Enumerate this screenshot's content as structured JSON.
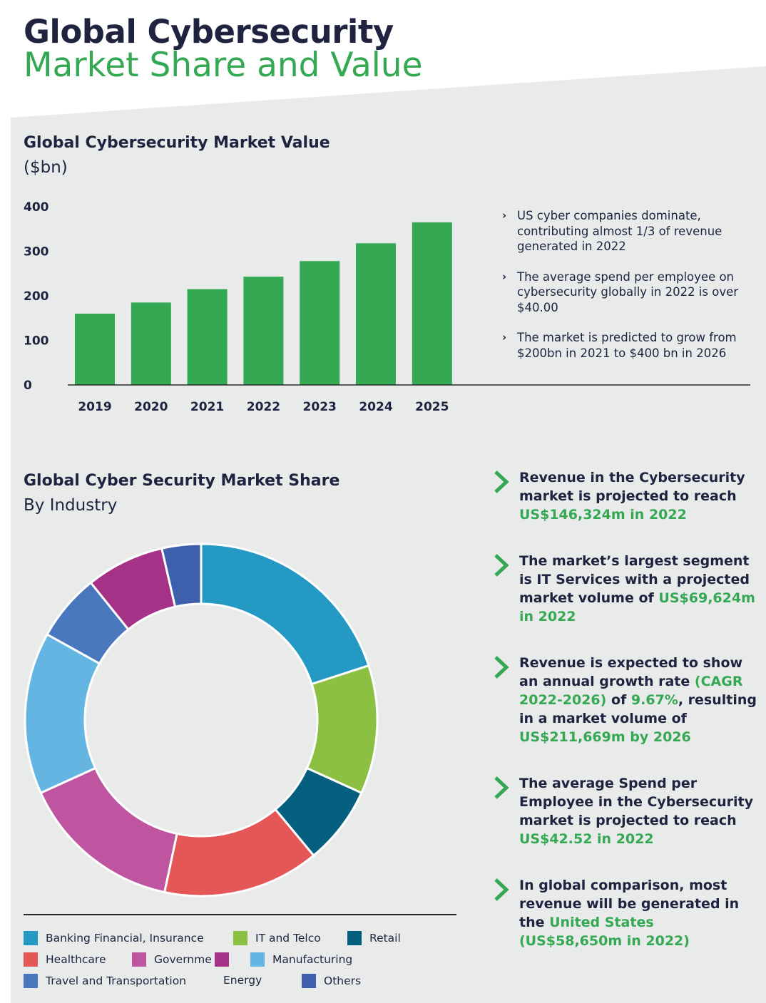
{
  "header": {
    "title_line1": "Global Cybersecurity",
    "title_line2": "Market Share and Value"
  },
  "colors": {
    "navy": "#1f2340",
    "green": "#34a853",
    "panel": "#e9eaea"
  },
  "chart_data": [
    {
      "type": "bar",
      "title": "Global Cybersecurity Market Value",
      "subtitle": "($bn)",
      "categories": [
        "2019",
        "2020",
        "2021",
        "2022",
        "2023",
        "2024",
        "2025"
      ],
      "values": [
        160,
        185,
        215,
        243,
        278,
        318,
        365
      ],
      "yticks": [
        0,
        100,
        200,
        300,
        400
      ],
      "ylim": [
        0,
        410
      ],
      "grid": false,
      "color": "#34a853"
    },
    {
      "type": "pie",
      "title": "Global Cyber Security Market Share",
      "subtitle": "By Industry",
      "labels": [
        "Banking Financial, Insurance",
        "IT and Telco",
        "Retail",
        "Healthcare",
        "Governme",
        "Manufacturing",
        "Travel and Transportation",
        "Energy",
        "Others"
      ],
      "values": [
        19.5,
        11.5,
        7,
        14,
        14.5,
        14.5,
        6,
        7,
        3.5
      ],
      "colors": [
        "#2399c4",
        "#8bc043",
        "#05607f",
        "#e55656",
        "#bf55a0",
        "#65b5e2",
        "#4a78bf",
        "#a63288",
        "#3e5fac"
      ],
      "slice_order": [
        "Banking Financial, Insurance",
        "IT and Telco",
        "Retail",
        "Healthcare",
        "Governme",
        "Manufacturing",
        "Travel and Transportation",
        "Energy",
        "Others"
      ],
      "legend_position": "bottom"
    }
  ],
  "value_bullets": [
    "US cyber companies dominate, contributing almost 1/3 of revenue generated in 2022",
    "The average spend per employee on cybersecurity globally in 2022 is over $40.00",
    "The market is predicted to grow from $200bn in 2021 to $400 bn in 2026"
  ],
  "facts": [
    {
      "pre": "Revenue in the Cybersecurity market is projected to reach ",
      "hl": "US$146,324m in 2022",
      "post": ""
    },
    {
      "pre": "The market’s largest segment is IT Services with a projected market volume of ",
      "hl": "US$69,624m in 2022",
      "post": ""
    },
    {
      "pre": "Revenue is expected to show an annual growth rate ",
      "hl": "(CAGR 2022-2026)",
      "mid": " of ",
      "hl2": "9.67%",
      "post": ", resulting in a market volume of ",
      "hl3": "US$211,669m by 2026"
    },
    {
      "pre": "The average Spend per Employee in the Cybersecurity market is projected to reach ",
      "hl": "US$42.52 in 2022",
      "post": ""
    },
    {
      "pre": "In global comparison, most revenue will be generated in the ",
      "hl": "United States (US$58,650m in 2022)",
      "post": ""
    }
  ],
  "glyphs": {
    "small_chevron": "›"
  }
}
